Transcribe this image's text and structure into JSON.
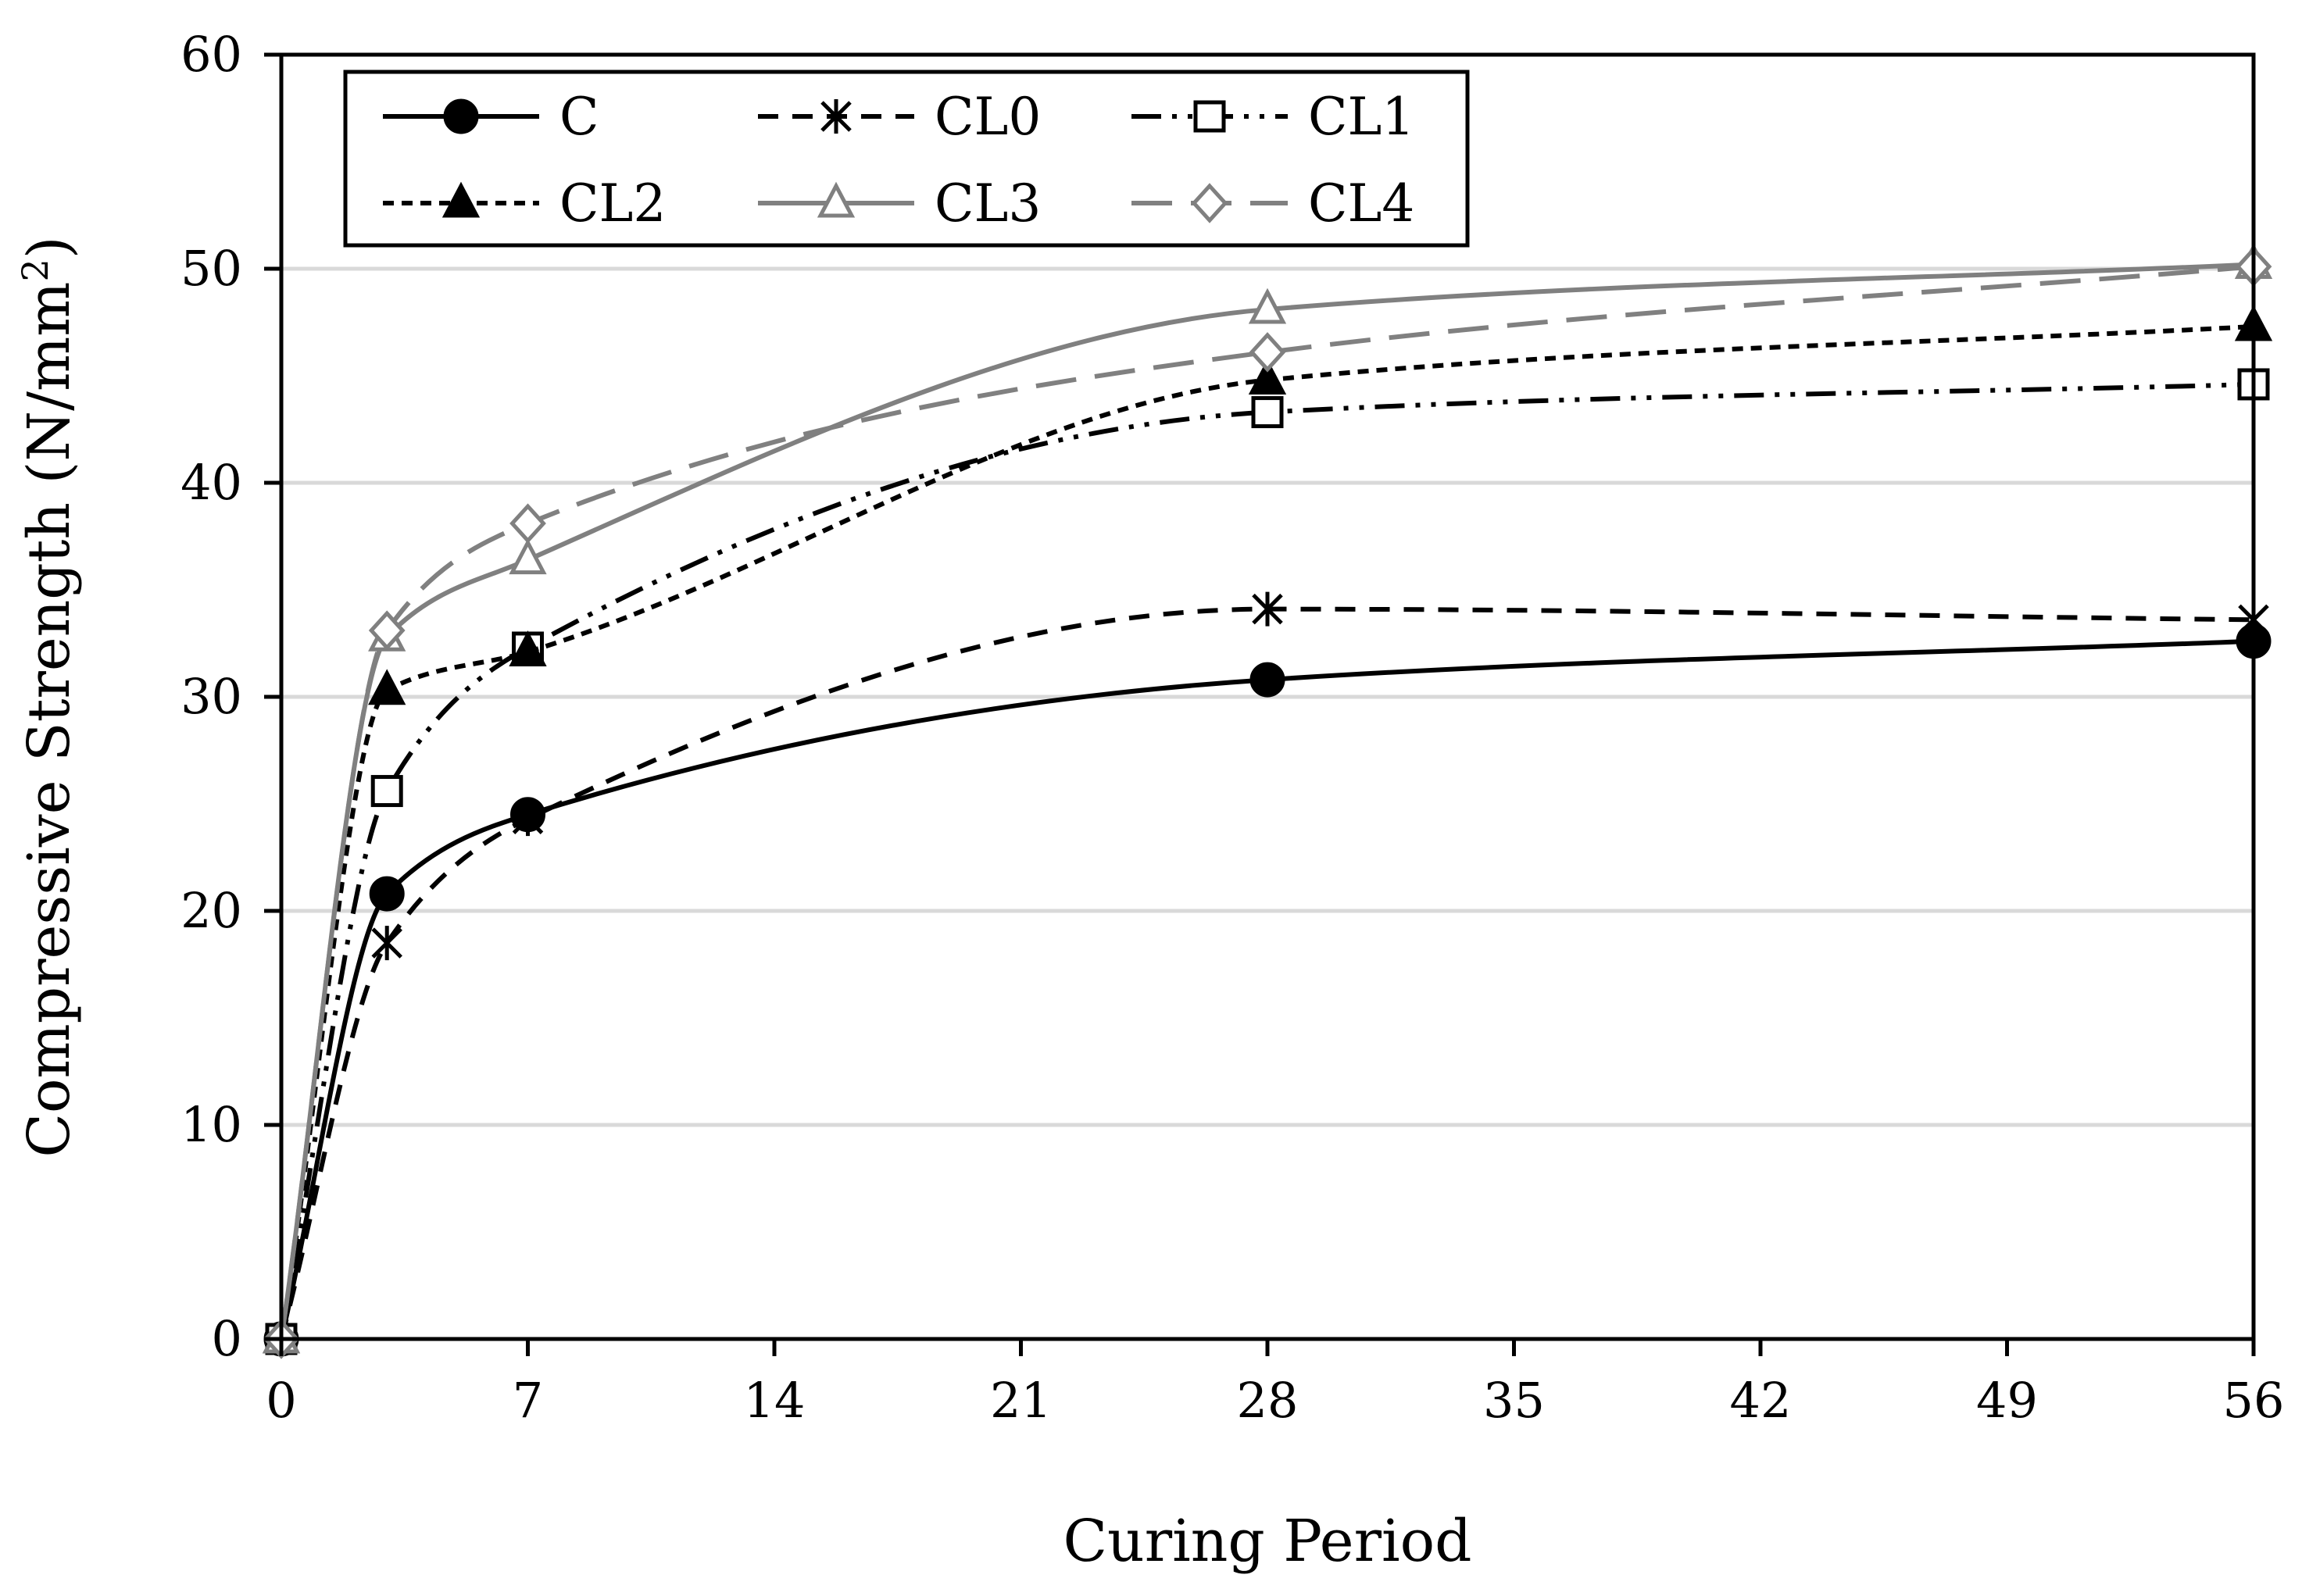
{
  "chart_data": {
    "type": "line",
    "title": "",
    "xlabel": "Curing Period",
    "ylabel": "Compressive Strength (N/mm",
    "ylabel_superscript": "2",
    "ylabel_suffix": ")",
    "xlim": [
      0,
      56
    ],
    "ylim": [
      0,
      60
    ],
    "xticks": [
      0,
      7,
      14,
      21,
      28,
      35,
      42,
      49,
      56
    ],
    "yticks": [
      0,
      10,
      20,
      30,
      40,
      50,
      60
    ],
    "grid": "horizontal",
    "legend_position": "top-left",
    "x": [
      0,
      3,
      7,
      28,
      56
    ],
    "series": [
      {
        "name": "C",
        "values": [
          0,
          20.8,
          24.5,
          30.8,
          32.6
        ],
        "color": "#000000",
        "dash": "solid",
        "marker": "circle-filled"
      },
      {
        "name": "CL0",
        "values": [
          0,
          18.5,
          24.3,
          34.1,
          33.6
        ],
        "color": "#000000",
        "dash": "dash",
        "marker": "asterisk"
      },
      {
        "name": "CL1",
        "values": [
          0,
          25.6,
          32.3,
          43.3,
          44.6
        ],
        "color": "#000000",
        "dash": "dashdotdot",
        "marker": "square-open"
      },
      {
        "name": "CL2",
        "values": [
          0,
          30.3,
          32.1,
          44.8,
          47.3
        ],
        "color": "#000000",
        "dash": "shortdash",
        "marker": "triangle-filled"
      },
      {
        "name": "CL3",
        "values": [
          0,
          32.8,
          36.4,
          48.1,
          50.2
        ],
        "color": "#808080",
        "dash": "solid",
        "marker": "triangle-open"
      },
      {
        "name": "CL4",
        "values": [
          0,
          33.1,
          38.1,
          46.1,
          50.1
        ],
        "color": "#808080",
        "dash": "longdash",
        "marker": "diamond-open"
      }
    ]
  }
}
